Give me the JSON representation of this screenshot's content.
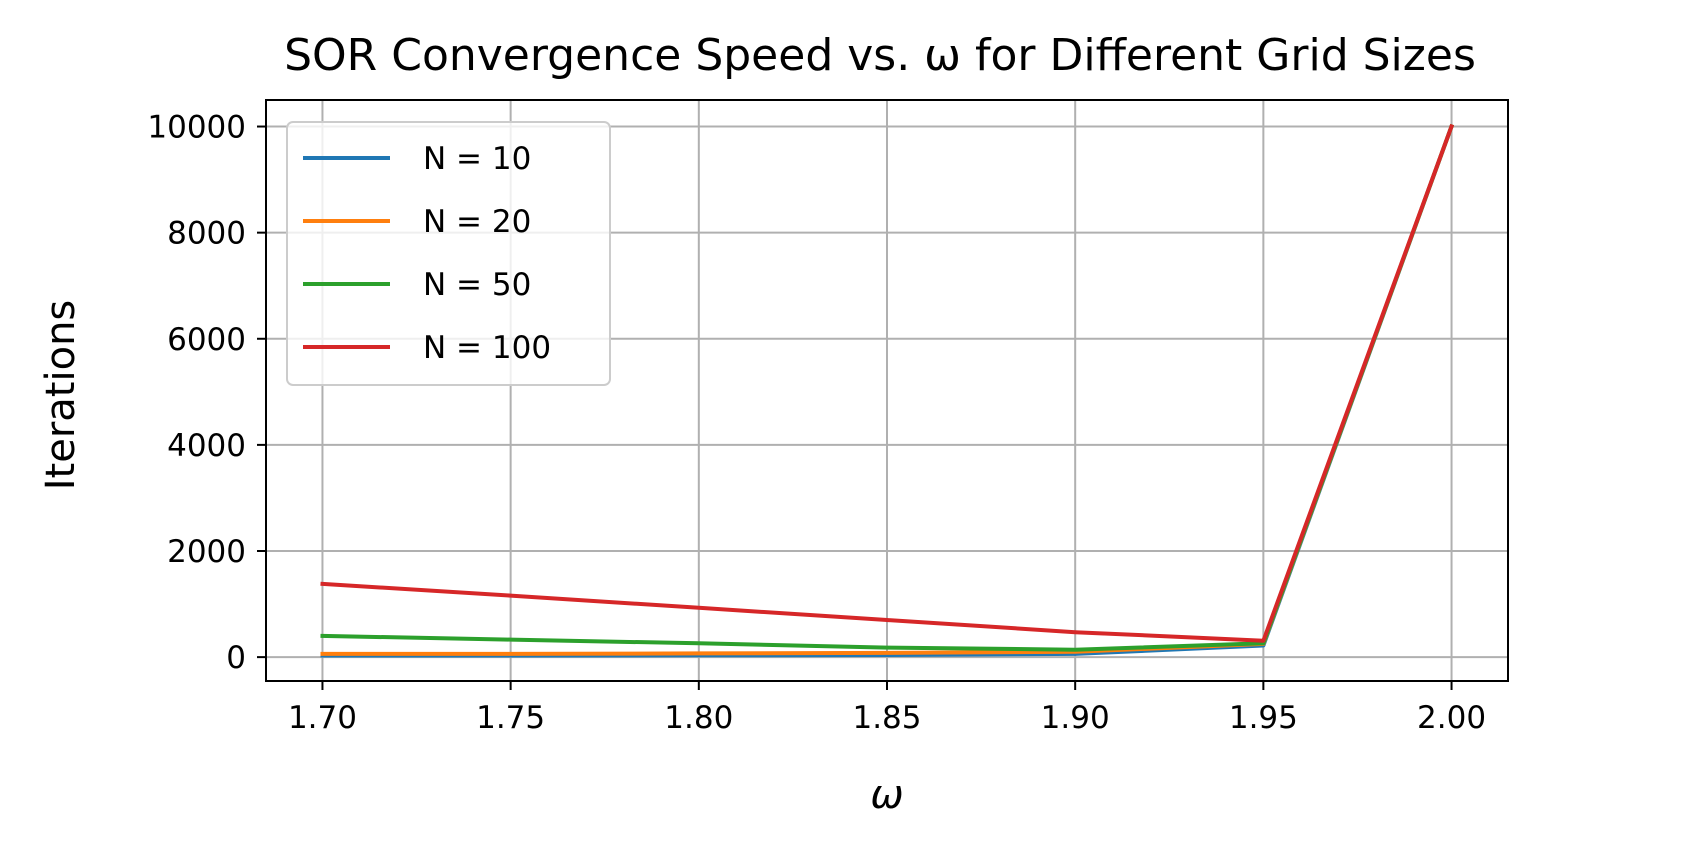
{
  "chart_data": {
    "type": "line",
    "title": "SOR Convergence Speed vs. ω for Different Grid Sizes",
    "xlabel": "ω",
    "ylabel": "Iterations",
    "xlim": [
      1.685,
      2.015
    ],
    "ylim": [
      -450,
      10500
    ],
    "xticks": [
      1.7,
      1.75,
      1.8,
      1.85,
      1.9,
      1.95,
      2.0
    ],
    "xtick_labels": [
      "1.70",
      "1.75",
      "1.80",
      "1.85",
      "1.90",
      "1.95",
      "2.00"
    ],
    "yticks": [
      0,
      2000,
      4000,
      6000,
      8000,
      10000
    ],
    "ytick_labels": [
      "0",
      "2000",
      "4000",
      "6000",
      "8000",
      "10000"
    ],
    "grid": true,
    "legend_position": "top-left",
    "x": [
      1.7,
      1.75,
      1.8,
      1.85,
      1.9,
      1.95,
      2.0
    ],
    "series": [
      {
        "name": "N = 10",
        "color": "#1f77b4",
        "values": [
          30,
          30,
          35,
          40,
          60,
          220,
          10000
        ]
      },
      {
        "name": "N = 20",
        "color": "#ff7f0e",
        "values": [
          60,
          60,
          70,
          80,
          100,
          250,
          10000
        ]
      },
      {
        "name": "N = 50",
        "color": "#2ca02c",
        "values": [
          400,
          330,
          260,
          180,
          140,
          260,
          10000
        ]
      },
      {
        "name": "N = 100",
        "color": "#d62728",
        "values": [
          1380,
          1160,
          930,
          700,
          470,
          310,
          10000
        ]
      }
    ]
  }
}
